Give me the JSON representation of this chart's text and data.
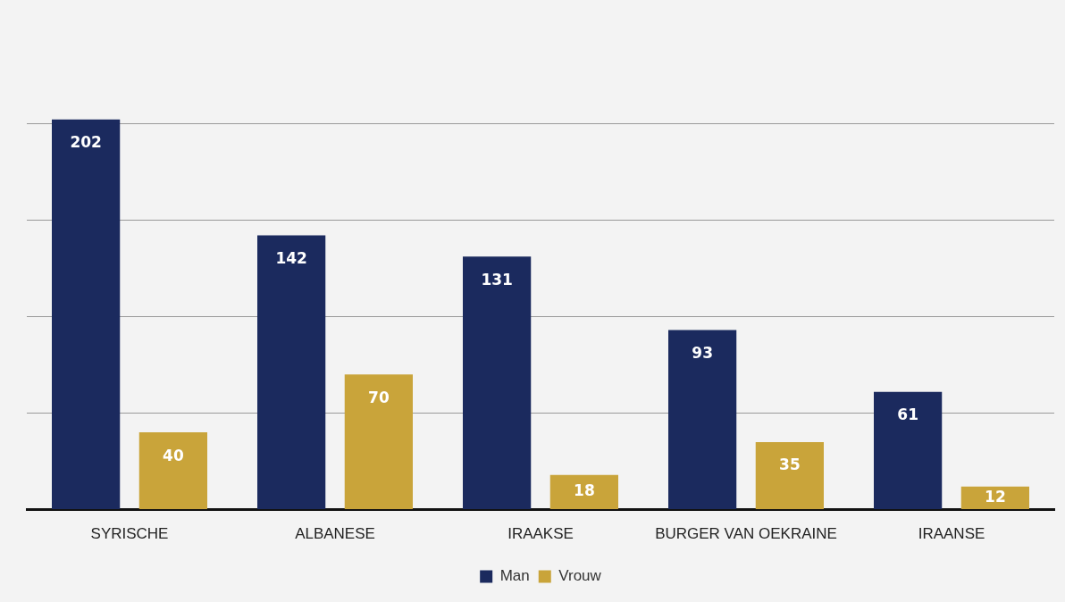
{
  "chart_data": {
    "type": "bar",
    "categories": [
      "SYRISCHE",
      "ALBANESE",
      "IRAAKSE",
      "BURGER VAN OEKRAINE",
      "IRAANSE"
    ],
    "series": [
      {
        "name": "Man",
        "color": "#1b2a5e",
        "values": [
          202,
          142,
          131,
          93,
          61
        ]
      },
      {
        "name": "Vrouw",
        "color": "#c9a43a",
        "values": [
          40,
          70,
          18,
          35,
          12
        ]
      }
    ],
    "yticks": [
      {
        "value": 0,
        "label": null
      },
      {
        "value": 50,
        "label": null
      },
      {
        "value": 100,
        "label": null
      },
      {
        "value": 150,
        "label": null
      },
      {
        "value": 200,
        "label": null
      }
    ],
    "tick_labels": "x",
    "grid": "y",
    "legend": "bottom",
    "data_labels": true
  }
}
